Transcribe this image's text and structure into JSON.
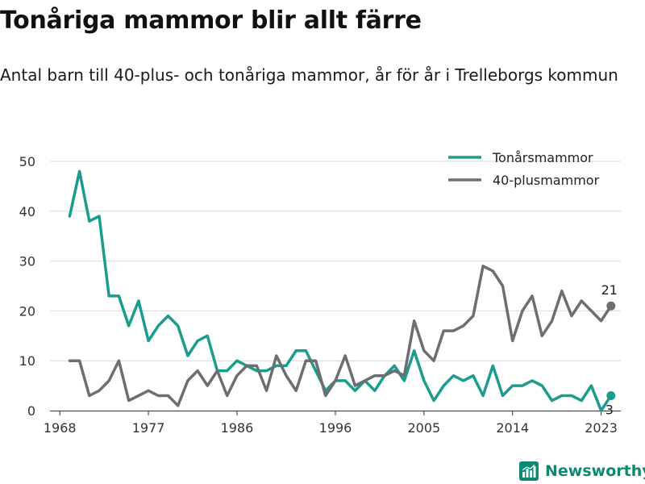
{
  "header": {
    "title": "Tonåriga mammor blir allt färre",
    "subtitle": "Antal barn till 40-plus- och tonåriga mammor, år för år i Trelleborgs kommun"
  },
  "brand": {
    "name": "Newsworthy",
    "icon": "bar-chart-logo-icon"
  },
  "colors": {
    "teen": "#1a9c8e",
    "forty": "#6e6e70",
    "brand": "#0c8a72",
    "grid": "#d9d9d9"
  },
  "chart_data": {
    "type": "line",
    "x": [
      1969,
      1970,
      1971,
      1972,
      1973,
      1974,
      1975,
      1976,
      1977,
      1978,
      1979,
      1980,
      1981,
      1982,
      1983,
      1984,
      1985,
      1986,
      1987,
      1988,
      1989,
      1990,
      1991,
      1992,
      1993,
      1994,
      1995,
      1996,
      1997,
      1998,
      1999,
      2000,
      2001,
      2002,
      2003,
      2004,
      2005,
      2006,
      2007,
      2008,
      2009,
      2010,
      2011,
      2012,
      2013,
      2014,
      2015,
      2016,
      2017,
      2018,
      2019,
      2020,
      2021,
      2022,
      2023,
      2024
    ],
    "series": [
      {
        "name": "Tonårsmammor",
        "values": [
          39,
          48,
          38,
          39,
          23,
          23,
          17,
          22,
          14,
          17,
          19,
          17,
          11,
          14,
          15,
          8,
          8,
          10,
          9,
          8,
          8,
          9,
          9,
          12,
          12,
          8,
          4,
          6,
          6,
          4,
          6,
          4,
          7,
          9,
          6,
          12,
          6,
          2,
          5,
          7,
          6,
          7,
          3,
          9,
          3,
          5,
          5,
          6,
          5,
          2,
          3,
          3,
          2,
          5,
          0,
          3
        ]
      },
      {
        "name": "40-plusmammor",
        "values": [
          10,
          10,
          3,
          4,
          6,
          10,
          2,
          3,
          4,
          3,
          3,
          1,
          6,
          8,
          5,
          8,
          3,
          7,
          9,
          9,
          4,
          11,
          7,
          4,
          10,
          10,
          3,
          6,
          11,
          5,
          6,
          7,
          7,
          8,
          7,
          18,
          12,
          10,
          16,
          16,
          17,
          19,
          29,
          28,
          25,
          14,
          20,
          23,
          15,
          18,
          24,
          19,
          22,
          20,
          18,
          21
        ]
      }
    ],
    "end_labels": [
      "3",
      "21"
    ],
    "x_ticks": [
      "1968",
      "1977",
      "1986",
      "1996",
      "2005",
      "2014",
      "2023"
    ],
    "x_tick_values": [
      1968,
      1977,
      1986,
      1996,
      2005,
      2014,
      2023
    ],
    "y_ticks": [
      "0",
      "10",
      "20",
      "30",
      "40",
      "50"
    ],
    "y_tick_values": [
      0,
      10,
      20,
      30,
      40,
      50
    ],
    "xlim": [
      1967,
      2025
    ],
    "ylim": [
      0,
      50
    ],
    "grid": true,
    "legend": "top-right"
  }
}
